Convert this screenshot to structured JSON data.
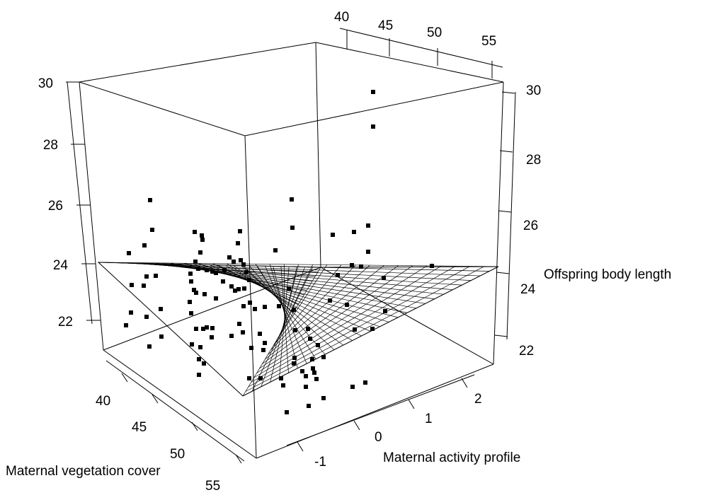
{
  "chart_data": {
    "type": "scatter",
    "subtype": "3d-scatter-with-regression-plane",
    "title": "",
    "axes": {
      "x": {
        "label": "Maternal vegetation cover",
        "range": [
          38,
          56
        ],
        "ticks": [
          "40",
          "45",
          "50",
          "55"
        ]
      },
      "y": {
        "label": "Maternal activity profile",
        "range": [
          -1.6,
          2.6
        ],
        "ticks": [
          "-1",
          "0",
          "1",
          "2"
        ]
      },
      "z": {
        "label": "Offspring body length",
        "range": [
          21.7,
          30
        ],
        "ticks_left": [
          "22",
          "24",
          "26",
          "28",
          "30"
        ],
        "ticks_right": [
          "22",
          "24",
          "26",
          "28",
          "30"
        ]
      },
      "back_ticks": [
        "40",
        "45",
        "50",
        "55"
      ]
    },
    "colors": {
      "points": "#000000",
      "lines": "#000000"
    },
    "series": [
      {
        "name": "",
        "marker": "square",
        "points": [
          [
            212,
            283
          ],
          [
            215,
            325
          ],
          [
            204,
            347
          ],
          [
            182,
            358
          ],
          [
            275,
            328
          ],
          [
            285,
            333
          ],
          [
            286,
            339
          ],
          [
            283,
            357
          ],
          [
            339,
            327
          ],
          [
            336,
            344
          ],
          [
            324,
            364
          ],
          [
            340,
            368
          ],
          [
            330,
            370
          ],
          [
            276,
            370
          ],
          [
            280,
            380
          ],
          [
            292,
            382
          ],
          [
            269,
            387
          ],
          [
            300,
            384
          ],
          [
            186,
            403
          ],
          [
            203,
            404
          ],
          [
            220,
            390
          ],
          [
            207,
            391
          ],
          [
            305,
            386
          ],
          [
            317,
            382
          ],
          [
            344,
            374
          ],
          [
            348,
            385
          ],
          [
            315,
            398
          ],
          [
            270,
            398
          ],
          [
            274,
            410
          ],
          [
            277,
            414
          ],
          [
            289,
            416
          ],
          [
            305,
            422
          ],
          [
            327,
            405
          ],
          [
            332,
            411
          ],
          [
            337,
            409
          ],
          [
            345,
            408
          ],
          [
            352,
            396
          ],
          [
            185,
            442
          ],
          [
            207,
            448
          ],
          [
            227,
            437
          ],
          [
            178,
            460
          ],
          [
            268,
            427
          ],
          [
            270,
            443
          ],
          [
            277,
            465
          ],
          [
            287,
            465
          ],
          [
            292,
            463
          ],
          [
            300,
            464
          ],
          [
            344,
            433
          ],
          [
            353,
            428
          ],
          [
            360,
            437
          ],
          [
            374,
            434
          ],
          [
            394,
            433
          ],
          [
            415,
            438
          ],
          [
            374,
            485
          ],
          [
            367,
            472
          ],
          [
            343,
            470
          ],
          [
            338,
            458
          ],
          [
            327,
            475
          ],
          [
            299,
            477
          ],
          [
            271,
            487
          ],
          [
            283,
            491
          ],
          [
            211,
            490
          ],
          [
            228,
            476
          ],
          [
            281,
            508
          ],
          [
            288,
            514
          ],
          [
            281,
            530
          ],
          [
            355,
            492
          ],
          [
            372,
            495
          ],
          [
            352,
            535
          ],
          [
            368,
            535
          ],
          [
            397,
            535
          ],
          [
            400,
            545
          ],
          [
            416,
            506
          ],
          [
            417,
            467
          ],
          [
            435,
            465
          ],
          [
            438,
            479
          ],
          [
            449,
            488
          ],
          [
            441,
            508
          ],
          [
            457,
            505
          ],
          [
            442,
            521
          ],
          [
            427,
            525
          ],
          [
            432,
            532
          ],
          [
            444,
            527
          ],
          [
            447,
            536
          ],
          [
            432,
            547
          ],
          [
            405,
            583
          ],
          [
            436,
            574
          ],
          [
            457,
            563
          ],
          [
            415,
            514
          ],
          [
            408,
            408
          ],
          [
            389,
            354
          ],
          [
            412,
            282
          ],
          [
            413,
            322
          ],
          [
            470,
            332
          ],
          [
            500,
            328
          ],
          [
            520,
            319
          ],
          [
            520,
            356
          ],
          [
            497,
            375
          ],
          [
            510,
            377
          ],
          [
            542,
            393
          ],
          [
            610,
            376
          ],
          [
            477,
            389
          ],
          [
            466,
            425
          ],
          [
            490,
            431
          ],
          [
            501,
            466
          ],
          [
            526,
            465
          ],
          [
            544,
            440
          ],
          [
            498,
            547
          ],
          [
            516,
            541
          ],
          [
            527,
            130
          ],
          [
            527,
            179
          ]
        ]
      }
    ],
    "regression_plane": true
  }
}
